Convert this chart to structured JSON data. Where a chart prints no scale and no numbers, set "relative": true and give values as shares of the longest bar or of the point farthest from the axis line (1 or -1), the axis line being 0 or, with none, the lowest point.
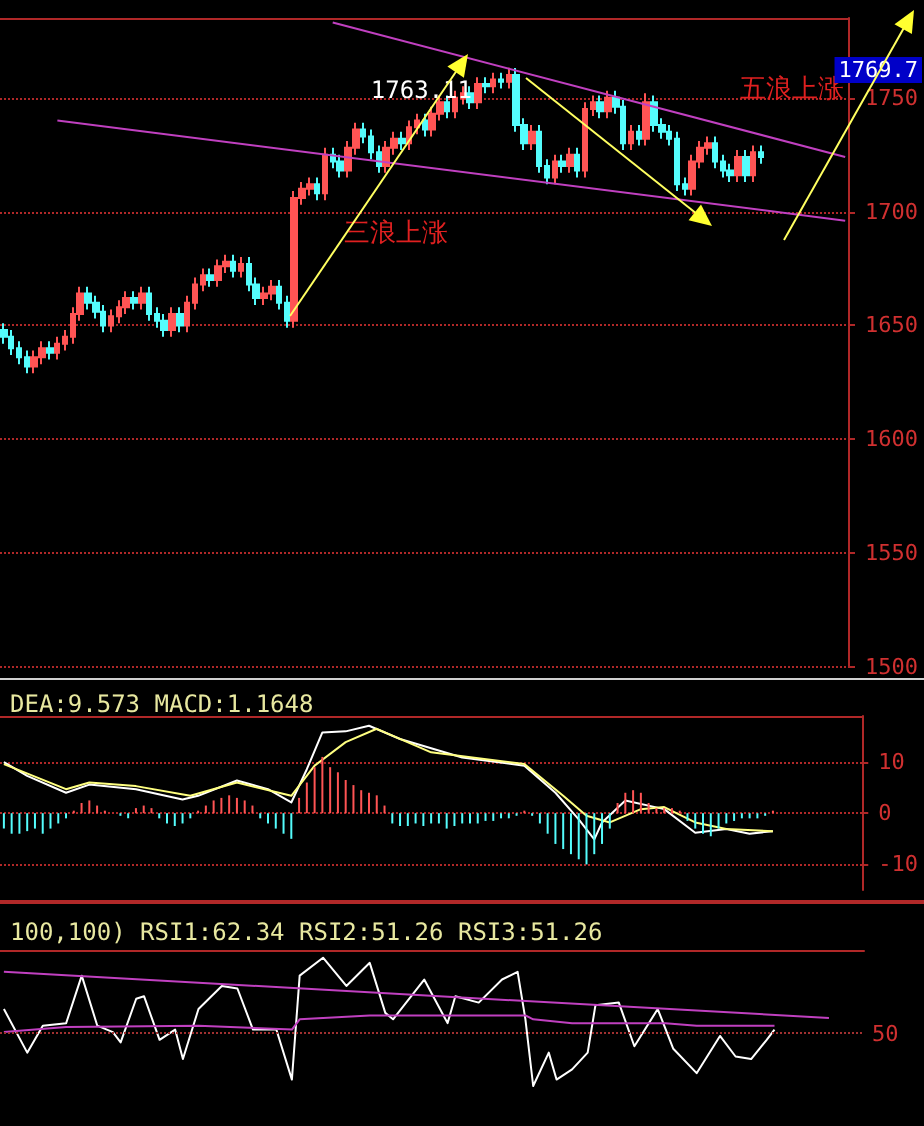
{
  "chart_data": [
    {
      "type": "candlestick",
      "categories": [
        null,
        null,
        null,
        null,
        null,
        null,
        null,
        null,
        null,
        null,
        null,
        null,
        null,
        null,
        null,
        null,
        null,
        null,
        null,
        null,
        null,
        null,
        null,
        null,
        null,
        null,
        null,
        null,
        null,
        null,
        null,
        null,
        null,
        null,
        null,
        null,
        null,
        null,
        null,
        null,
        null,
        null,
        null,
        null,
        null,
        null,
        null,
        null,
        null,
        null,
        null,
        null,
        null,
        null,
        null,
        null,
        null,
        null,
        null,
        null,
        null,
        null,
        null,
        null,
        null,
        null,
        null,
        null,
        null,
        null,
        null,
        null,
        null,
        null,
        null,
        null,
        null,
        null,
        null,
        null,
        null,
        null,
        null,
        null,
        null,
        null,
        null,
        null,
        null,
        null,
        null,
        null,
        null,
        null,
        null,
        null,
        null,
        null,
        null,
        null,
        null,
        null,
        null,
        null,
        null,
        null,
        null,
        null,
        null,
        null,
        null
      ],
      "ohlc": [
        [
          1648,
          1651,
          1642,
          1645
        ],
        [
          1645,
          1648,
          1637,
          1640
        ],
        [
          1640,
          1643,
          1633,
          1636
        ],
        [
          1636,
          1639,
          1629,
          1632
        ],
        [
          1632,
          1639,
          1629,
          1636
        ],
        [
          1636,
          1643,
          1633,
          1640
        ],
        [
          1640,
          1643,
          1635,
          1638
        ],
        [
          1638,
          1645,
          1635,
          1642
        ],
        [
          1642,
          1648,
          1639,
          1645
        ],
        [
          1645,
          1658,
          1642,
          1655
        ],
        [
          1655,
          1667,
          1652,
          1664
        ],
        [
          1664,
          1667,
          1657,
          1660
        ],
        [
          1660,
          1663,
          1653,
          1656
        ],
        [
          1656,
          1659,
          1647,
          1650
        ],
        [
          1650,
          1657,
          1647,
          1654
        ],
        [
          1654,
          1661,
          1651,
          1658
        ],
        [
          1658,
          1665,
          1655,
          1662
        ],
        [
          1662,
          1665,
          1657,
          1660
        ],
        [
          1660,
          1667,
          1657,
          1664
        ],
        [
          1664,
          1667,
          1652,
          1655
        ],
        [
          1655,
          1658,
          1649,
          1652
        ],
        [
          1652,
          1655,
          1645,
          1648
        ],
        [
          1648,
          1658,
          1645,
          1655
        ],
        [
          1655,
          1658,
          1647,
          1650
        ],
        [
          1650,
          1663,
          1647,
          1660
        ],
        [
          1660,
          1671,
          1657,
          1668
        ],
        [
          1668,
          1675,
          1665,
          1672
        ],
        [
          1672,
          1675,
          1667,
          1670
        ],
        [
          1670,
          1679,
          1667,
          1676
        ],
        [
          1676,
          1681,
          1673,
          1678
        ],
        [
          1678,
          1681,
          1671,
          1674
        ],
        [
          1674,
          1680,
          1671,
          1677
        ],
        [
          1677,
          1680,
          1665,
          1668
        ],
        [
          1668,
          1671,
          1659,
          1662
        ],
        [
          1662,
          1667,
          1659,
          1664
        ],
        [
          1664,
          1670,
          1661,
          1667
        ],
        [
          1667,
          1670,
          1657,
          1660
        ],
        [
          1660,
          1663,
          1649,
          1652
        ],
        [
          1652,
          1709,
          1649,
          1706
        ],
        [
          1706,
          1713,
          1703,
          1710
        ],
        [
          1710,
          1715,
          1707,
          1712
        ],
        [
          1712,
          1715,
          1705,
          1708
        ],
        [
          1708,
          1728,
          1705,
          1725
        ],
        [
          1725,
          1728,
          1719,
          1722
        ],
        [
          1722,
          1725,
          1715,
          1718
        ],
        [
          1718,
          1731,
          1715,
          1728
        ],
        [
          1728,
          1739,
          1725,
          1736
        ],
        [
          1736,
          1739,
          1730,
          1733
        ],
        [
          1733,
          1736,
          1723,
          1726
        ],
        [
          1726,
          1729,
          1717,
          1720
        ],
        [
          1720,
          1731,
          1717,
          1728
        ],
        [
          1728,
          1735,
          1725,
          1732
        ],
        [
          1732,
          1735,
          1727,
          1730
        ],
        [
          1730,
          1740,
          1727,
          1737
        ],
        [
          1737,
          1743,
          1734,
          1740
        ],
        [
          1740,
          1743,
          1733,
          1736
        ],
        [
          1736,
          1746,
          1733,
          1743
        ],
        [
          1743,
          1751,
          1740,
          1748
        ],
        [
          1748,
          1751,
          1741,
          1744
        ],
        [
          1744,
          1753,
          1741,
          1750
        ],
        [
          1750,
          1755,
          1747,
          1752
        ],
        [
          1752,
          1755,
          1745,
          1748
        ],
        [
          1748,
          1759,
          1745,
          1756
        ],
        [
          1756,
          1759,
          1752,
          1755
        ],
        [
          1755,
          1761,
          1752,
          1758
        ],
        [
          1758,
          1761,
          1754,
          1757
        ],
        [
          1757,
          1763.11,
          1754,
          1760
        ],
        [
          1760,
          1763,
          1735,
          1738
        ],
        [
          1738,
          1741,
          1727,
          1730
        ],
        [
          1730,
          1738,
          1727,
          1735
        ],
        [
          1735,
          1738,
          1717,
          1720
        ],
        [
          1720,
          1723,
          1712,
          1715
        ],
        [
          1715,
          1725,
          1712,
          1722
        ],
        [
          1722,
          1725,
          1717,
          1720
        ],
        [
          1720,
          1728,
          1717,
          1725
        ],
        [
          1725,
          1728,
          1715,
          1718
        ],
        [
          1718,
          1748,
          1715,
          1745
        ],
        [
          1745,
          1751,
          1742,
          1748
        ],
        [
          1748,
          1751,
          1741,
          1744
        ],
        [
          1744,
          1753,
          1741,
          1750
        ],
        [
          1750,
          1753,
          1743,
          1746
        ],
        [
          1746,
          1749,
          1727,
          1730
        ],
        [
          1730,
          1738,
          1727,
          1735
        ],
        [
          1735,
          1738,
          1729,
          1732
        ],
        [
          1732,
          1752,
          1729,
          1748
        ],
        [
          1748,
          1751,
          1735,
          1738
        ],
        [
          1738,
          1741,
          1732,
          1735
        ],
        [
          1735,
          1738,
          1729,
          1732
        ],
        [
          1732,
          1735,
          1709,
          1712
        ],
        [
          1712,
          1715,
          1707,
          1710
        ],
        [
          1710,
          1725,
          1707,
          1722
        ],
        [
          1722,
          1731,
          1719,
          1728
        ],
        [
          1728,
          1733,
          1725,
          1730
        ],
        [
          1730,
          1733,
          1719,
          1722
        ],
        [
          1722,
          1725,
          1715,
          1718
        ],
        [
          1718,
          1721,
          1713,
          1716
        ],
        [
          1716,
          1727,
          1713,
          1724
        ],
        [
          1724,
          1727,
          1713,
          1716
        ],
        [
          1716,
          1729,
          1713,
          1726
        ],
        [
          1726,
          1729,
          1721,
          1724
        ],
        null,
        null,
        null,
        null,
        null,
        null,
        null,
        null,
        null,
        null,
        null
      ],
      "colors": [
        "#54fcfc",
        "#54fcfc",
        "#54fcfc",
        "#54fcfc",
        "#ff5454",
        "#ff5454",
        "#54fcfc",
        "#ff5454",
        "#ff5454",
        "#ff5454",
        "#ff5454",
        "#54fcfc",
        "#54fcfc",
        "#54fcfc",
        "#ff5454",
        "#ff5454",
        "#ff5454",
        "#54fcfc",
        "#ff5454",
        "#54fcfc",
        "#54fcfc",
        "#54fcfc",
        "#ff5454",
        "#54fcfc",
        "#ff5454",
        "#ff5454",
        "#ff5454",
        "#54fcfc",
        "#ff5454",
        "#ff5454",
        "#54fcfc",
        "#ff5454",
        "#54fcfc",
        "#54fcfc",
        "#ff5454",
        "#ff5454",
        "#54fcfc",
        "#54fcfc",
        "#ff5454",
        "#ff5454",
        "#ff5454",
        "#54fcfc",
        "#ff5454",
        "#54fcfc",
        "#54fcfc",
        "#ff5454",
        "#ff5454",
        "#54fcfc",
        "#54fcfc",
        "#54fcfc",
        "#ff5454",
        "#ff5454",
        "#54fcfc",
        "#ff5454",
        "#ff5454",
        "#54fcfc",
        "#ff5454",
        "#ff5454",
        "#54fcfc",
        "#ff5454",
        "#ff5454",
        "#54fcfc",
        "#ff5454",
        "#54fcfc",
        "#ff5454",
        "#54fcfc",
        "#ff5454",
        "#54fcfc",
        "#54fcfc",
        "#ff5454",
        "#54fcfc",
        "#54fcfc",
        "#ff5454",
        "#54fcfc",
        "#ff5454",
        "#54fcfc",
        "#ff5454",
        "#ff5454",
        "#54fcfc",
        "#ff5454",
        "#54fcfc",
        "#54fcfc",
        "#ff5454",
        "#54fcfc",
        "#ff5454",
        "#54fcfc",
        "#54fcfc",
        "#54fcfc",
        "#54fcfc",
        "#54fcfc",
        "#ff5454",
        "#ff5454",
        "#ff5454",
        "#54fcfc",
        "#54fcfc",
        "#54fcfc",
        "#ff5454",
        "#54fcfc",
        "#ff5454",
        "#54fcfc",
        null,
        null,
        null,
        null,
        null,
        null,
        null,
        null,
        null,
        null,
        null
      ],
      "series": [
        {
          "type": "line",
          "color": "#c040c0",
          "values": [
            null,
            null,
            null,
            null,
            null,
            null,
            null,
            null,
            null,
            null,
            null,
            null,
            null,
            null,
            null,
            null,
            null,
            null,
            null,
            null,
            null,
            null,
            null,
            null,
            null,
            null,
            null,
            null,
            null,
            null,
            null,
            null,
            null,
            null,
            null,
            null,
            null,
            null,
            null,
            null,
            null,
            null,
            null,
            1783,
            null,
            null,
            null,
            null,
            null,
            null,
            null,
            null,
            null,
            null,
            null,
            null,
            null,
            null,
            null,
            null,
            null,
            null,
            null,
            null,
            null,
            null,
            null,
            null,
            null,
            null,
            null,
            null,
            null,
            null,
            null,
            null,
            null,
            null,
            null,
            null,
            null,
            null,
            null,
            null,
            null,
            null,
            null,
            null,
            null,
            null,
            null,
            null,
            null,
            null,
            null,
            null,
            null,
            null,
            null,
            null,
            null,
            null,
            null,
            null,
            null,
            null,
            null,
            null,
            null,
            null,
            1724
          ]
        },
        {
          "type": "line",
          "color": "#c040c0",
          "values": [
            null,
            null,
            null,
            null,
            null,
            null,
            null,
            1740,
            null,
            null,
            null,
            null,
            null,
            null,
            null,
            null,
            null,
            null,
            null,
            null,
            null,
            null,
            null,
            null,
            null,
            null,
            null,
            null,
            null,
            null,
            null,
            null,
            null,
            null,
            null,
            null,
            null,
            null,
            null,
            null,
            null,
            null,
            null,
            null,
            null,
            null,
            null,
            null,
            null,
            null,
            null,
            null,
            null,
            null,
            null,
            null,
            null,
            null,
            null,
            null,
            null,
            null,
            null,
            null,
            null,
            null,
            null,
            null,
            null,
            null,
            null,
            null,
            null,
            null,
            null,
            null,
            null,
            null,
            null,
            null,
            null,
            null,
            null,
            null,
            null,
            null,
            null,
            null,
            null,
            null,
            null,
            null,
            null,
            null,
            null,
            null,
            null,
            null,
            null,
            null,
            null,
            null,
            null,
            null,
            null,
            null,
            null,
            null,
            null,
            null,
            1696
          ]
        }
      ],
      "ylim": [
        1500,
        1785
      ],
      "yticks": [
        1500,
        1550,
        1600,
        1650,
        1700,
        1750
      ],
      "grid": "y",
      "tick_labels": "y",
      "annotations": [
        "1763.11",
        "三浪上涨",
        "五浪上涨",
        "1769.7"
      ]
    },
    {
      "type": "bar",
      "title": "DEA:9.573 MACD:1.1648",
      "categories": [
        null,
        null,
        null,
        null,
        null,
        null,
        null,
        null,
        null,
        null,
        null,
        null,
        null,
        null,
        null,
        null,
        null,
        null,
        null,
        null,
        null,
        null,
        null,
        null,
        null,
        null,
        null,
        null,
        null,
        null,
        null,
        null,
        null,
        null,
        null,
        null,
        null,
        null,
        null,
        null,
        null,
        null,
        null,
        null,
        null,
        null,
        null,
        null,
        null,
        null,
        null,
        null,
        null,
        null,
        null,
        null,
        null,
        null,
        null,
        null,
        null,
        null,
        null,
        null,
        null,
        null,
        null,
        null,
        null,
        null,
        null,
        null,
        null,
        null,
        null,
        null,
        null,
        null,
        null,
        null,
        null,
        null,
        null,
        null,
        null,
        null,
        null,
        null,
        null,
        null,
        null,
        null,
        null,
        null,
        null,
        null,
        null,
        null,
        null,
        null,
        null,
        null,
        null,
        null,
        null,
        null,
        null,
        null,
        null,
        null,
        null
      ],
      "series": [
        {
          "values": [
            -3,
            -4,
            -4,
            -3.5,
            -3,
            -4,
            -3,
            -2,
            -1,
            0.5,
            2,
            2.5,
            1.5,
            0.5,
            0,
            -0.5,
            -1,
            1,
            1.5,
            1,
            -1,
            -2,
            -2.5,
            -2,
            -1,
            0.5,
            1.5,
            2.5,
            3,
            3.5,
            3,
            2.5,
            1.5,
            -1,
            -2,
            -3,
            -4,
            -5,
            3,
            6,
            9,
            11,
            9,
            8,
            6.5,
            5.5,
            4.5,
            4,
            3.5,
            1.5,
            -2,
            -2.5,
            -2.5,
            -2,
            -2.5,
            -2,
            -2,
            -3,
            -2.5,
            -2,
            -2,
            -2,
            -1.5,
            -1.5,
            -1,
            -1,
            -0.5,
            0.5,
            -0.5,
            -2,
            -4,
            -6,
            -7,
            -8,
            -9,
            -10,
            -8,
            -6,
            -3,
            2,
            4,
            4.5,
            4,
            2,
            1,
            1,
            1,
            0.5,
            -1.5,
            -3,
            -4,
            -4.5,
            -3,
            -2,
            -1.5,
            -1,
            -1,
            -1,
            -0.5,
            0.5,
            null,
            null,
            null,
            null,
            null,
            null,
            null,
            null,
            null,
            null,
            null
          ],
          "colors": [
            "#54fcfc",
            "#54fcfc",
            "#54fcfc",
            "#54fcfc",
            "#54fcfc",
            "#54fcfc",
            "#54fcfc",
            "#54fcfc",
            "#54fcfc",
            "#ff5454",
            "#ff5454",
            "#ff5454",
            "#ff5454",
            "#ff5454",
            "#ff5454",
            "#54fcfc",
            "#54fcfc",
            "#ff5454",
            "#ff5454",
            "#ff5454",
            "#54fcfc",
            "#54fcfc",
            "#54fcfc",
            "#54fcfc",
            "#54fcfc",
            "#ff5454",
            "#ff5454",
            "#ff5454",
            "#ff5454",
            "#ff5454",
            "#ff5454",
            "#ff5454",
            "#ff5454",
            "#54fcfc",
            "#54fcfc",
            "#54fcfc",
            "#54fcfc",
            "#54fcfc",
            "#ff5454",
            "#ff5454",
            "#ff5454",
            "#ff5454",
            "#ff5454",
            "#ff5454",
            "#ff5454",
            "#ff5454",
            "#ff5454",
            "#ff5454",
            "#ff5454",
            "#ff5454",
            "#54fcfc",
            "#54fcfc",
            "#54fcfc",
            "#54fcfc",
            "#54fcfc",
            "#54fcfc",
            "#54fcfc",
            "#54fcfc",
            "#54fcfc",
            "#54fcfc",
            "#54fcfc",
            "#54fcfc",
            "#54fcfc",
            "#54fcfc",
            "#54fcfc",
            "#54fcfc",
            "#54fcfc",
            "#ff5454",
            "#54fcfc",
            "#54fcfc",
            "#54fcfc",
            "#54fcfc",
            "#54fcfc",
            "#54fcfc",
            "#54fcfc",
            "#54fcfc",
            "#54fcfc",
            "#54fcfc",
            "#54fcfc",
            "#ff5454",
            "#ff5454",
            "#ff5454",
            "#ff5454",
            "#ff5454",
            "#ff5454",
            "#ff5454",
            "#ff5454",
            "#ff5454",
            "#54fcfc",
            "#54fcfc",
            "#54fcfc",
            "#54fcfc",
            "#54fcfc",
            "#54fcfc",
            "#54fcfc",
            "#54fcfc",
            "#54fcfc",
            "#54fcfc",
            "#54fcfc",
            "#ff5454",
            null,
            null,
            null,
            null,
            null,
            null,
            null,
            null,
            null,
            null,
            null
          ]
        },
        {
          "type": "line",
          "color": "#ffffff",
          "values": [
            10,
            null,
            null,
            7.3,
            null,
            null,
            null,
            null,
            4,
            null,
            null,
            5.6,
            null,
            null,
            null,
            null,
            null,
            4.7,
            null,
            null,
            null,
            null,
            null,
            2.7,
            null,
            3.4,
            null,
            null,
            null,
            null,
            6.4,
            null,
            null,
            null,
            4.7,
            null,
            null,
            2.1,
            null,
            8.6,
            null,
            15.8,
            null,
            null,
            16,
            null,
            null,
            17.1,
            null,
            null,
            null,
            14.5,
            null,
            null,
            null,
            null,
            null,
            null,
            null,
            10.9,
            null,
            null,
            null,
            null,
            null,
            null,
            null,
            9.3,
            null,
            null,
            null,
            4,
            null,
            null,
            -1.2,
            null,
            -5.1,
            -1.8,
            null,
            null,
            2.5,
            null,
            null,
            null,
            null,
            0.8,
            null,
            null,
            null,
            -3.8,
            null,
            null,
            null,
            -3.1,
            null,
            null,
            -4,
            null,
            null,
            -3.5,
            null,
            null,
            null,
            null,
            null,
            null,
            null,
            null,
            null,
            null,
            null
          ]
        },
        {
          "type": "line",
          "color": "#ffff80",
          "values": [
            9.6,
            null,
            null,
            null,
            null,
            null,
            null,
            null,
            4.7,
            null,
            null,
            6,
            null,
            null,
            null,
            null,
            null,
            5.3,
            null,
            null,
            null,
            null,
            null,
            null,
            3.4,
            null,
            null,
            null,
            null,
            null,
            6,
            null,
            null,
            null,
            null,
            null,
            null,
            3.4,
            null,
            null,
            9.3,
            null,
            null,
            null,
            13.9,
            null,
            null,
            null,
            16.5,
            null,
            null,
            null,
            null,
            null,
            null,
            11.9,
            null,
            null,
            null,
            null,
            null,
            null,
            null,
            null,
            null,
            null,
            null,
            9.6,
            null,
            null,
            null,
            null,
            3.4,
            null,
            null,
            -0.5,
            null,
            null,
            -1.8,
            null,
            null,
            null,
            0.8,
            null,
            null,
            1.2,
            null,
            null,
            null,
            -1.8,
            null,
            null,
            null,
            -3.1,
            null,
            null,
            null,
            null,
            null,
            -3.5,
            null,
            null,
            null,
            null,
            null,
            null,
            null,
            null,
            null,
            null,
            null
          ]
        }
      ],
      "ylim": [
        -15,
        19
      ],
      "yticks": [
        -10,
        0,
        10
      ],
      "grid": "y",
      "tick_labels": "y"
    },
    {
      "type": "line",
      "title": "100,100) RSI1:62.34 RSI2:51.26 RSI3:51.26",
      "relative": true,
      "categories": [
        null,
        null,
        null,
        null,
        null,
        null,
        null,
        null,
        null,
        null,
        null,
        null,
        null,
        null,
        null,
        null,
        null,
        null,
        null,
        null,
        null,
        null,
        null,
        null,
        null,
        null,
        null,
        null,
        null,
        null,
        null,
        null,
        null,
        null,
        null,
        null,
        null,
        null,
        null,
        null,
        null,
        null,
        null,
        null,
        null,
        null,
        null,
        null,
        null,
        null,
        null,
        null,
        null,
        null,
        null,
        null,
        null,
        null,
        null,
        null,
        null,
        null,
        null,
        null,
        null,
        null,
        null,
        null,
        null,
        null,
        null,
        null,
        null,
        null,
        null,
        null,
        null,
        null,
        null,
        null,
        null,
        null,
        null,
        null,
        null,
        null,
        null,
        null,
        null,
        null,
        null,
        null,
        null,
        null,
        null,
        null,
        null,
        null,
        null,
        null,
        null,
        null,
        null,
        null,
        null,
        null,
        null,
        null,
        null,
        null,
        null
      ],
      "series": [
        {
          "color": "#ffffff",
          "values": [
            0.6,
            null,
            null,
            0.26,
            null,
            0.47,
            null,
            null,
            0.49,
            null,
            0.86,
            null,
            0.47,
            null,
            0.42,
            0.34,
            null,
            0.68,
            0.7,
            null,
            0.36,
            null,
            0.44,
            0.21,
            null,
            0.6,
            null,
            null,
            0.78,
            null,
            0.76,
            null,
            0.44,
            null,
            null,
            0.44,
            null,
            0.05,
            0.86,
            null,
            null,
            1,
            null,
            null,
            0.78,
            null,
            null,
            0.96,
            null,
            0.57,
            0.52,
            null,
            null,
            null,
            0.83,
            null,
            null,
            0.49,
            0.7,
            null,
            null,
            0.65,
            null,
            null,
            0.83,
            null,
            0.89,
            0.52,
            0,
            null,
            0.26,
            0.05,
            null,
            0.13,
            null,
            0.26,
            0.63,
            null,
            null,
            0.65,
            null,
            0.31,
            null,
            null,
            0.6,
            null,
            0.29,
            null,
            null,
            0.1,
            null,
            null,
            0.39,
            null,
            0.23,
            null,
            0.21,
            null,
            0.36,
            0.44,
            null,
            null,
            null,
            null,
            null,
            null,
            null,
            null,
            null,
            null,
            null
          ]
        },
        {
          "color": "#c040c0",
          "values": [
            0.42,
            null,
            null,
            null,
            null,
            null,
            null,
            null,
            0.46,
            null,
            null,
            null,
            null,
            null,
            null,
            null,
            null,
            null,
            null,
            null,
            null,
            null,
            null,
            null,
            null,
            0.47,
            null,
            null,
            null,
            null,
            null,
            null,
            null,
            null,
            null,
            null,
            null,
            0.44,
            0.52,
            null,
            null,
            null,
            null,
            null,
            null,
            null,
            null,
            0.55,
            null,
            null,
            null,
            null,
            null,
            null,
            null,
            null,
            null,
            null,
            null,
            0.55,
            null,
            null,
            null,
            null,
            null,
            null,
            null,
            0.55,
            0.52,
            null,
            null,
            null,
            null,
            0.49,
            null,
            null,
            null,
            null,
            0.49,
            null,
            null,
            null,
            null,
            null,
            null,
            0.49,
            null,
            null,
            null,
            0.47,
            null,
            null,
            null,
            null,
            null,
            null,
            null,
            null,
            null,
            0.47,
            null,
            null,
            null,
            null,
            null,
            null,
            null,
            null,
            null,
            null,
            null
          ]
        },
        {
          "color": "#c040c0",
          "values": [
            0.89,
            null,
            null,
            null,
            null,
            null,
            null,
            null,
            null,
            null,
            null,
            null,
            null,
            null,
            null,
            null,
            null,
            null,
            null,
            null,
            null,
            null,
            null,
            null,
            null,
            null,
            null,
            null,
            null,
            null,
            null,
            null,
            null,
            null,
            null,
            null,
            null,
            null,
            null,
            null,
            null,
            null,
            null,
            null,
            null,
            null,
            null,
            null,
            null,
            null,
            null,
            null,
            null,
            null,
            null,
            null,
            null,
            null,
            null,
            null,
            null,
            null,
            null,
            null,
            null,
            null,
            null,
            null,
            null,
            null,
            null,
            null,
            null,
            null,
            null,
            null,
            null,
            null,
            null,
            null,
            null,
            null,
            null,
            null,
            null,
            null,
            null,
            null,
            null,
            null,
            null,
            null,
            null,
            null,
            null,
            null,
            null,
            null,
            null,
            null,
            null,
            null,
            null,
            null,
            null,
            null,
            0.53,
            null,
            null,
            null,
            null
          ]
        }
      ],
      "ref_lines": [
        {
          "axis": "y",
          "value": 0.42,
          "color": "#a03030",
          "line_style": "dotted"
        }
      ],
      "annotations": [
        "50"
      ],
      "tick_labels": false
    }
  ]
}
